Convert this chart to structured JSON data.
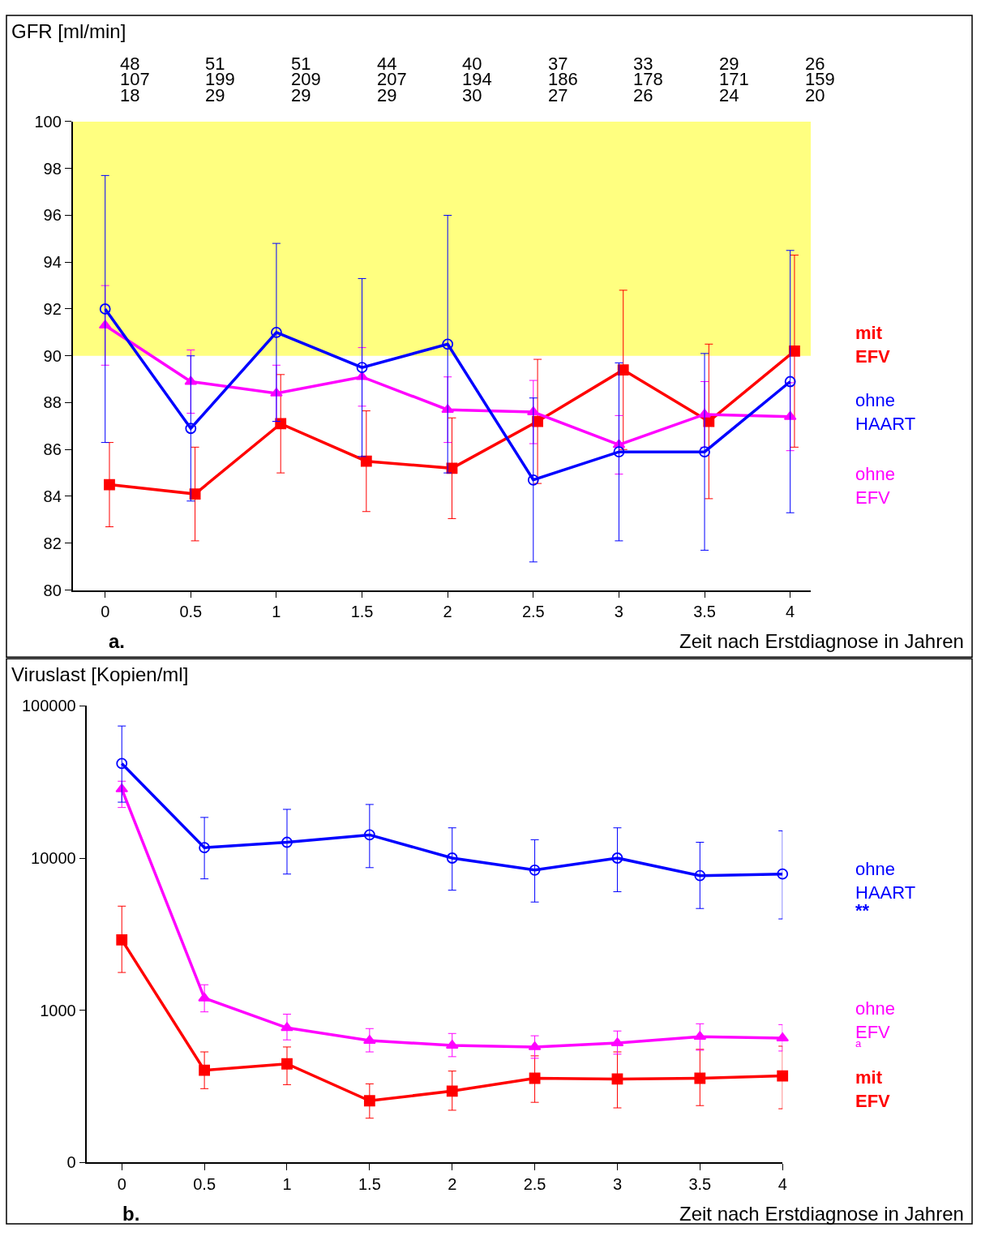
{
  "chart_data": [
    {
      "type": "line",
      "ylabel": "GFR [ml/min]",
      "xlabel": "Zeit nach Erstdiagnose in Jahren",
      "x": [
        0,
        0.5,
        1,
        1.5,
        2,
        2.5,
        3,
        3.5,
        4
      ],
      "xlim": [
        -0.19,
        4.12
      ],
      "xticks": [
        0,
        0.5,
        1,
        1.5,
        2,
        2.5,
        3,
        3.5,
        4
      ],
      "ylim": [
        80,
        100
      ],
      "yticks": [
        80,
        82,
        84,
        86,
        88,
        90,
        92,
        94,
        96,
        98,
        100
      ],
      "grid": false,
      "legend": false,
      "line_style": "solid",
      "bands": [
        {
          "axis": "y",
          "from": 90,
          "to": 100,
          "color": "#ffff80"
        }
      ],
      "annotations": [
        "a.",
        "48",
        "51",
        "51",
        "44",
        "40",
        "37",
        "33",
        "29",
        "26",
        "107",
        "199",
        "209",
        "207",
        "194",
        "186",
        "178",
        "171",
        "159",
        "18",
        "29",
        "29",
        "29",
        "30",
        "27",
        "26",
        "24",
        "20"
      ],
      "series": [
        {
          "name": "mit EFV",
          "color": "#ff0000",
          "marker": "square",
          "x": [
            0.025,
            0.525,
            1.025,
            1.525,
            2.025,
            2.525,
            3.025,
            3.525,
            4.025
          ],
          "values": [
            84.5,
            84.1,
            87.1,
            85.5,
            85.2,
            87.2,
            89.4,
            87.2,
            90.2
          ],
          "errors": [
            1.8,
            2.0,
            2.1,
            2.15,
            2.15,
            2.65,
            3.4,
            3.3,
            4.1
          ]
        },
        {
          "name": "ohne EFV",
          "color": "#ff00ff",
          "marker": "triangle",
          "values": [
            91.3,
            88.9,
            88.4,
            89.1,
            87.7,
            87.6,
            86.2,
            87.5,
            87.4
          ],
          "errors": [
            1.7,
            1.35,
            1.2,
            1.25,
            1.4,
            1.35,
            1.25,
            1.4,
            1.45
          ]
        },
        {
          "name": "ohne HAART",
          "color": "#0000ff",
          "marker": "circle",
          "values": [
            92.0,
            86.9,
            91.0,
            89.5,
            90.5,
            84.7,
            85.9,
            85.9,
            88.9
          ],
          "errors": [
            5.7,
            3.1,
            3.8,
            3.8,
            5.5,
            3.5,
            3.8,
            4.2,
            5.6
          ]
        }
      ]
    },
    {
      "type": "line",
      "ylabel": "Viruslast [Kopien/ml]",
      "xlabel": "Zeit nach Erstdiagnose in Jahren",
      "x": [
        0,
        0.5,
        1,
        1.5,
        2,
        2.5,
        3,
        3.5,
        4
      ],
      "xlim": [
        -0.21,
        4.0
      ],
      "xticks": [
        0,
        0.5,
        1,
        1.5,
        2,
        2.5,
        3,
        3.5,
        4
      ],
      "ylim": [
        0,
        100000
      ],
      "yticks": [
        0,
        1000,
        10000,
        100000
      ],
      "log": "y",
      "grid": false,
      "legend": false,
      "line_style": "solid",
      "annotations": [
        "b.",
        "**",
        "a"
      ],
      "series": [
        {
          "name": "mit EFV",
          "color": "#ff0000",
          "marker": "square",
          "values": [
            2900,
            403,
            444,
            254,
            294,
            357,
            353,
            357,
            370
          ],
          "errors": [
            [
              1770,
              4830
            ],
            [
              305,
              532
            ],
            [
              324,
              573
            ],
            [
              195,
              328
            ],
            [
              220,
              398
            ],
            [
              248,
              501
            ],
            [
              228,
              532
            ],
            [
              236,
              553
            ],
            [
              225,
              580
            ]
          ]
        },
        {
          "name": "ohne EFV",
          "color": "#ff00ff",
          "marker": "triangle",
          "values": [
            28400,
            1200,
            766,
            631,
            587,
            573,
            608,
            670,
            655
          ],
          "errors": [
            [
              21500,
              32000
            ],
            [
              975,
              1470
            ],
            [
              638,
              942
            ],
            [
              532,
              757
            ],
            [
              495,
              703
            ],
            [
              483,
              679
            ],
            [
              514,
              730
            ],
            [
              546,
              814
            ],
            [
              539,
              804
            ]
          ]
        },
        {
          "name": "ohne HAART",
          "color": "#0000ff",
          "marker": "circle",
          "values": [
            41800,
            11700,
            12700,
            14200,
            10000,
            8340,
            10000,
            7660,
            7850
          ],
          "errors": [
            [
              23300,
              73800
            ],
            [
              7300,
              18500
            ],
            [
              7850,
              20900
            ],
            [
              8650,
              22500
            ],
            [
              6150,
              15800
            ],
            [
              5140,
              13200
            ],
            [
              6010,
              15800
            ],
            [
              4660,
              12700
            ],
            [
              3980,
              15100
            ]
          ]
        }
      ]
    }
  ]
}
